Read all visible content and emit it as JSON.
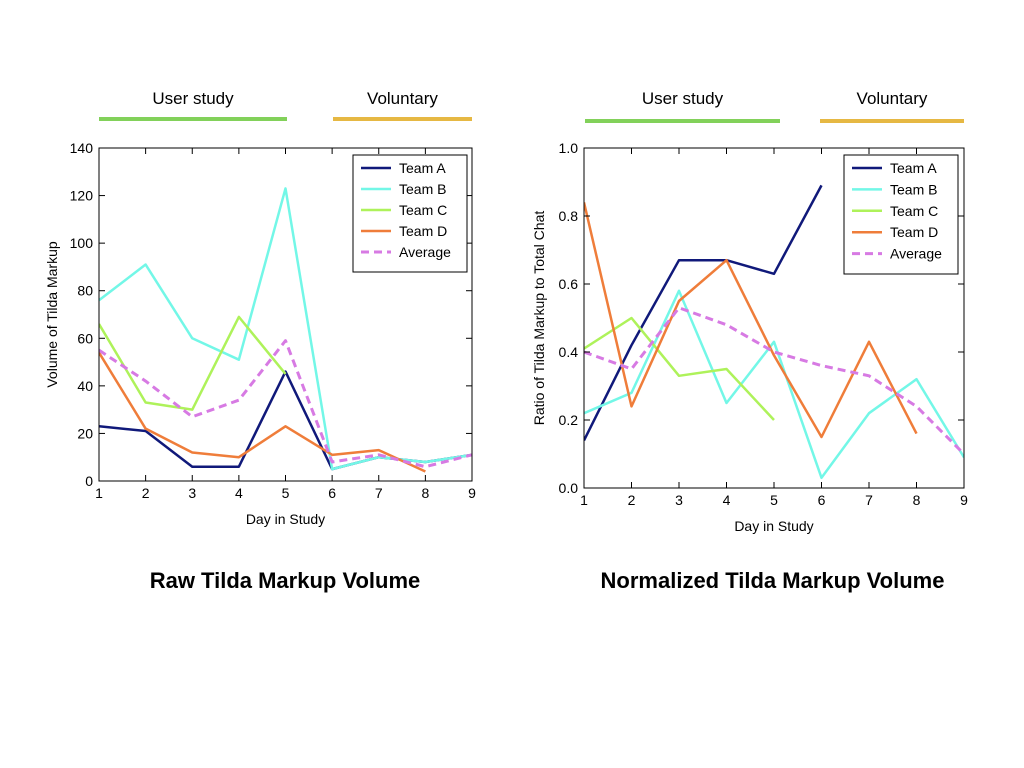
{
  "colors": {
    "user_study_bar": "#82d15a",
    "voluntary_bar": "#e6b843",
    "team_a": "#10197a",
    "team_b": "#73f7e7",
    "team_c": "#aef25a",
    "team_d": "#ef7d3a",
    "average": "#d77ae3"
  },
  "chart_data": [
    {
      "type": "line",
      "title": "Raw Tilda Markup Volume",
      "xlabel": "Day in Study",
      "ylabel": "Volume of Tilda Markup",
      "xlim": [
        1,
        9
      ],
      "ylim": [
        0,
        140
      ],
      "xticks": [
        "1",
        "2",
        "3",
        "4",
        "5",
        "6",
        "7",
        "8",
        "9"
      ],
      "yticks": [
        "0",
        "20",
        "40",
        "60",
        "80",
        "100",
        "120",
        "140"
      ],
      "grid": false,
      "legend_position": "top-right",
      "phases": [
        {
          "label": "User study",
          "from": 1,
          "to": 5,
          "color": "#82d15a"
        },
        {
          "label": "Voluntary",
          "from": 6,
          "to": 9,
          "color": "#e6b843"
        }
      ],
      "series": [
        {
          "name": "Team A",
          "color": "#10197a",
          "dashed": false,
          "x": [
            1,
            2,
            3,
            4,
            5,
            6,
            7,
            8,
            9
          ],
          "y": [
            23,
            21,
            6,
            6,
            46,
            5,
            10,
            8,
            11
          ]
        },
        {
          "name": "Team B",
          "color": "#73f7e7",
          "dashed": false,
          "x": [
            1,
            2,
            3,
            4,
            5,
            6,
            7,
            8,
            9
          ],
          "y": [
            76,
            91,
            60,
            51,
            123,
            5,
            10,
            8,
            11
          ]
        },
        {
          "name": "Team C",
          "color": "#aef25a",
          "dashed": false,
          "x": [
            1,
            2,
            3,
            4,
            5
          ],
          "y": [
            66,
            33,
            30,
            69,
            45
          ]
        },
        {
          "name": "Team D",
          "color": "#ef7d3a",
          "dashed": false,
          "x": [
            1,
            2,
            3,
            4,
            5,
            6,
            7,
            8
          ],
          "y": [
            54,
            22,
            12,
            10,
            23,
            11,
            13,
            4
          ]
        },
        {
          "name": "Average",
          "color": "#d77ae3",
          "dashed": true,
          "x": [
            1,
            2,
            3,
            4,
            5,
            6,
            7,
            8,
            9
          ],
          "y": [
            55,
            42,
            27,
            34,
            59,
            8,
            11,
            6,
            11
          ]
        }
      ]
    },
    {
      "type": "line",
      "title": "Normalized Tilda Markup Volume",
      "xlabel": "Day in Study",
      "ylabel": "Ratio of Tilda Markup to Total Chat",
      "xlim": [
        1,
        9
      ],
      "ylim": [
        0,
        1
      ],
      "xticks": [
        "1",
        "2",
        "3",
        "4",
        "5",
        "6",
        "7",
        "8",
        "9"
      ],
      "yticks": [
        "0.0",
        "0.2",
        "0.4",
        "0.6",
        "0.8",
        "1.0"
      ],
      "grid": false,
      "legend_position": "top-right",
      "phases": [
        {
          "label": "User study",
          "from": 1,
          "to": 5,
          "color": "#82d15a"
        },
        {
          "label": "Voluntary",
          "from": 6,
          "to": 9,
          "color": "#e6b843"
        }
      ],
      "series": [
        {
          "name": "Team A",
          "color": "#10197a",
          "dashed": false,
          "x": [
            1,
            2,
            3,
            4,
            5,
            6
          ],
          "y": [
            0.14,
            0.42,
            0.67,
            0.67,
            0.63,
            0.89
          ]
        },
        {
          "name": "Team B",
          "color": "#73f7e7",
          "dashed": false,
          "x": [
            1,
            2,
            3,
            4,
            5,
            6,
            7,
            8,
            9
          ],
          "y": [
            0.22,
            0.28,
            0.58,
            0.25,
            0.43,
            0.03,
            0.22,
            0.32,
            0.09
          ]
        },
        {
          "name": "Team C",
          "color": "#aef25a",
          "dashed": false,
          "x": [
            1,
            2,
            3,
            4,
            5
          ],
          "y": [
            0.41,
            0.5,
            0.33,
            0.35,
            0.2
          ]
        },
        {
          "name": "Team D",
          "color": "#ef7d3a",
          "dashed": false,
          "x": [
            1,
            2,
            3,
            4,
            5,
            6,
            7,
            8
          ],
          "y": [
            0.84,
            0.24,
            0.55,
            0.67,
            0.39,
            0.15,
            0.43,
            0.16
          ]
        },
        {
          "name": "Average",
          "color": "#d77ae3",
          "dashed": true,
          "x": [
            1,
            2,
            3,
            4,
            5,
            6,
            7,
            8,
            9
          ],
          "y": [
            0.4,
            0.35,
            0.53,
            0.48,
            0.4,
            0.36,
            0.33,
            0.24,
            0.1
          ]
        }
      ]
    }
  ]
}
